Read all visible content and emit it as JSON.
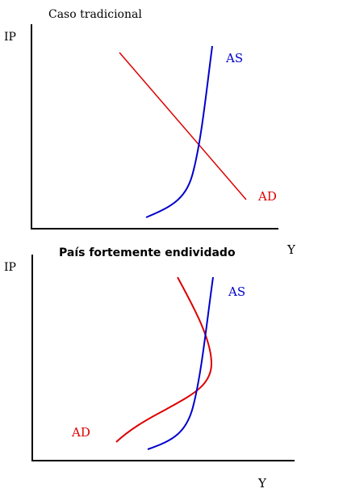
{
  "colors": {
    "axis": "#000000",
    "as_curve": "#0000cc",
    "ad_curve": "#dd0000",
    "text": "#000000"
  },
  "top_panel": {
    "title": "Caso tradicional",
    "y_axis_label": "IP",
    "x_axis_label": "Y",
    "as_label": "AS",
    "ad_label": "AD"
  },
  "bottom_panel": {
    "title": "País fortemente endividado",
    "y_axis_label": "IP",
    "x_axis_label": "Y",
    "as_label": "AS",
    "ad_label": "AD"
  }
}
